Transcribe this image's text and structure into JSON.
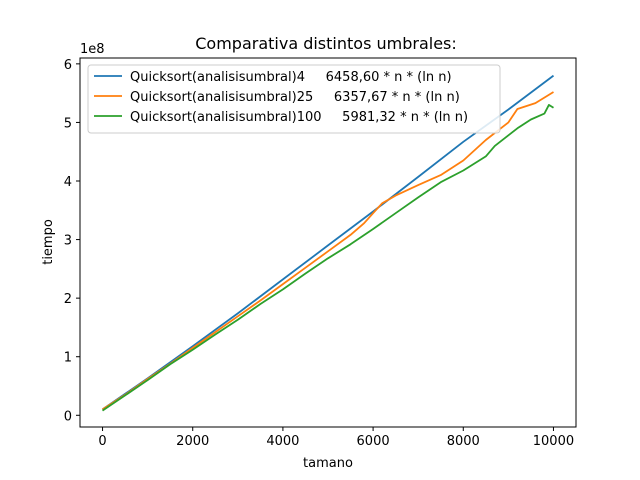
{
  "chart_data": {
    "type": "line",
    "title": "Comparativa distintos umbrales:",
    "xlabel": "tamano",
    "ylabel": "tiempo",
    "y_scale_label": "1e8",
    "xlim": [
      -500,
      10500
    ],
    "ylim": [
      -0.2,
      6.1
    ],
    "y_unit_multiplier": 100000000,
    "x_ticks": [
      0,
      2000,
      4000,
      6000,
      8000,
      10000
    ],
    "x_tick_labels": [
      "0",
      "2000",
      "4000",
      "6000",
      "8000",
      "10000"
    ],
    "y_ticks": [
      0,
      1,
      2,
      3,
      4,
      5,
      6
    ],
    "y_tick_labels": [
      "0",
      "1",
      "2",
      "3",
      "4",
      "5",
      "6"
    ],
    "grid": false,
    "legend_position": "upper-left",
    "series": [
      {
        "name": "Quicksort(analisisumbral)4     6458,60 * n * (ln n)",
        "color": "#1f77b4",
        "x": [
          0,
          1000,
          2000,
          3000,
          4000,
          5000,
          6000,
          7000,
          8000,
          9000,
          10000
        ],
        "y": [
          0.1,
          0.63,
          1.18,
          1.74,
          2.32,
          2.9,
          3.48,
          4.07,
          4.67,
          5.22,
          5.8
        ]
      },
      {
        "name": "Quicksort(analisisumbral)25     6357,67 * n * (ln n)",
        "color": "#ff7f0e",
        "x": [
          0,
          500,
          1000,
          1500,
          2000,
          2500,
          3000,
          3500,
          4000,
          4500,
          5000,
          5500,
          5800,
          6000,
          6200,
          6500,
          7000,
          7500,
          8000,
          8500,
          9000,
          9200,
          9600,
          10000
        ],
        "y": [
          0.1,
          0.35,
          0.62,
          0.88,
          1.15,
          1.42,
          1.69,
          1.96,
          2.24,
          2.52,
          2.8,
          3.08,
          3.28,
          3.45,
          3.62,
          3.75,
          3.93,
          4.1,
          4.35,
          4.7,
          5.0,
          5.23,
          5.33,
          5.52
        ]
      },
      {
        "name": "Quicksort(analisisumbral)100     5981,32 * n * (ln n)",
        "color": "#2ca02c",
        "x": [
          0,
          500,
          1000,
          1500,
          2000,
          2500,
          3000,
          3500,
          4000,
          4500,
          5000,
          5500,
          6000,
          6500,
          7000,
          7500,
          8000,
          8500,
          8700,
          9000,
          9200,
          9500,
          9800,
          9900,
          10000
        ],
        "y": [
          0.08,
          0.34,
          0.6,
          0.87,
          1.12,
          1.38,
          1.63,
          1.9,
          2.15,
          2.42,
          2.68,
          2.92,
          3.18,
          3.45,
          3.72,
          3.98,
          4.18,
          4.42,
          4.6,
          4.78,
          4.9,
          5.05,
          5.15,
          5.3,
          5.25
        ]
      }
    ]
  }
}
